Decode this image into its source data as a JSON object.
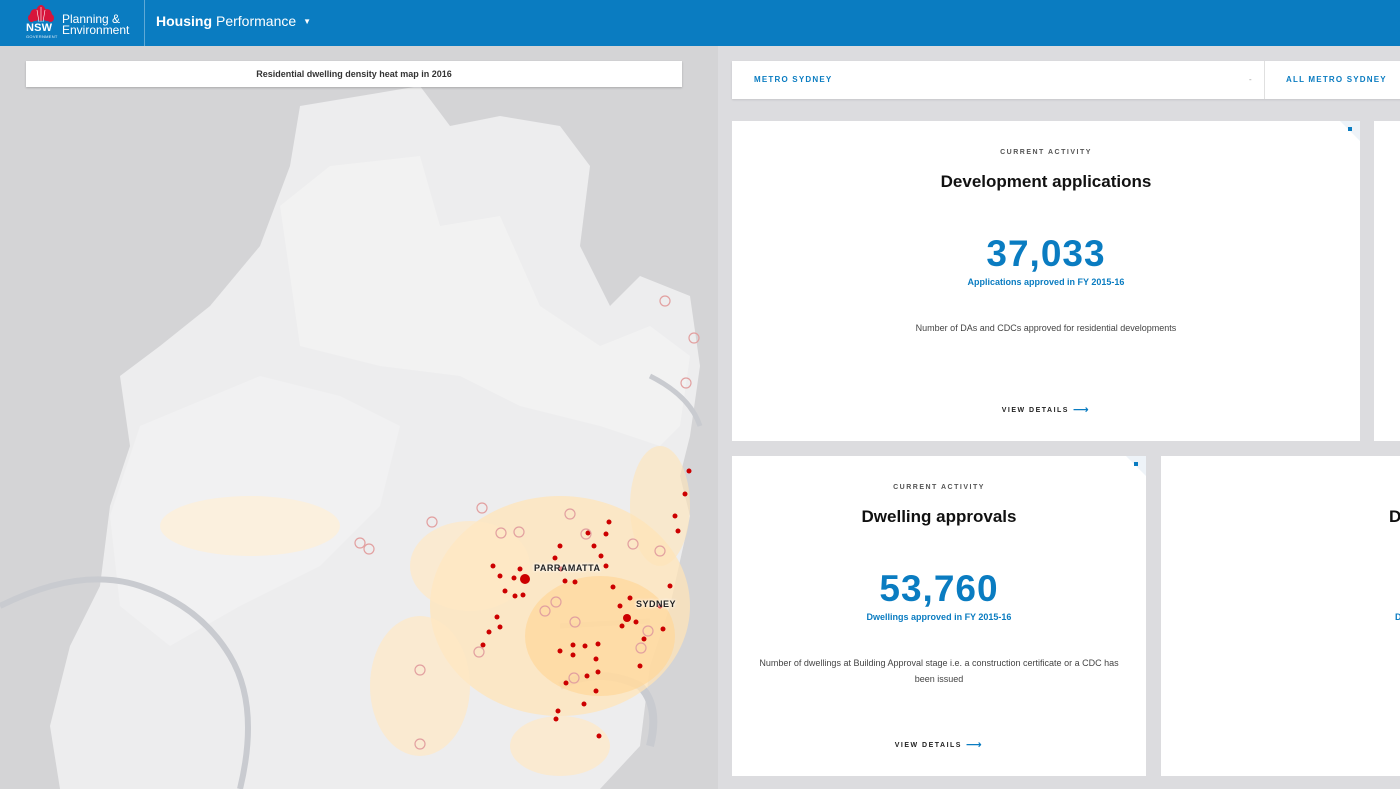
{
  "header": {
    "logo_nsw": "NSW",
    "logo_govt": "GOVERNMENT",
    "logo_dept": "Planning & Environment",
    "app_title_bold": "Housing",
    "app_title_light": "Performance",
    "brand_color": "#0a7cc1"
  },
  "map": {
    "title": "Residential dwelling density heat map in 2016",
    "labels": {
      "parramatta": "PARRAMATTA",
      "sydney": "SYDNEY"
    }
  },
  "selector": {
    "region": "METRO SYDNEY",
    "separator": "-",
    "area": "ALL METRO SYDNEY"
  },
  "cards": {
    "development": {
      "eyebrow": "CURRENT ACTIVITY",
      "title": "Development applications",
      "value": "37,033",
      "subtitle": "Applications approved in FY 2015-16",
      "description": "Number of DAs and CDCs approved for residential developments",
      "link": "VIEW DETAILS"
    },
    "dwelling": {
      "eyebrow": "CURRENT ACTIVITY",
      "title": "Dwelling approvals",
      "value": "53,760",
      "subtitle": "Dwellings approved in FY 2015-16",
      "description": "Number of dwellings at Building Approval stage i.e. a construction certificate or a CDC has been issued",
      "link": "VIEW DETAILS"
    },
    "partial_right": {
      "title_fragment": "D",
      "subtitle_fragment": "D"
    }
  }
}
